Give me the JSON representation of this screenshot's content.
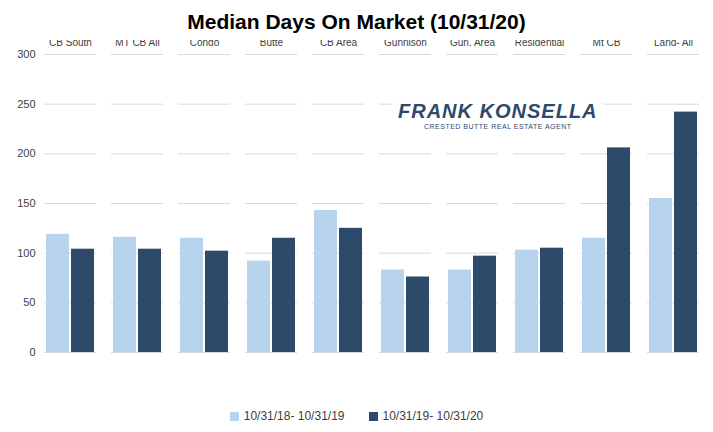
{
  "chart_data": {
    "type": "bar",
    "title": "Median Days On Market (10/31/20)",
    "categories": [
      "CB South",
      "MT CB All",
      "MT CB Condo",
      "Crested Butte",
      "CB Area",
      "Gunnison",
      "Gun. Area",
      "All Residential",
      "Land- CB South thru Mt CB",
      "Land- All"
    ],
    "series": [
      {
        "name": "10/31/18- 10/31/19",
        "color": "#b8d3ee",
        "values": [
          119,
          116,
          115,
          92,
          143,
          83,
          83,
          103,
          115,
          155
        ]
      },
      {
        "name": "10/31/19- 10/31/20",
        "color": "#2e4a6b",
        "values": [
          104,
          104,
          102,
          115,
          125,
          76,
          97,
          105,
          206,
          242
        ]
      }
    ],
    "ylim": [
      0,
      300
    ],
    "yticks": [
      0,
      50,
      100,
      150,
      200,
      250,
      300
    ],
    "grid": true,
    "legend": "bottom",
    "annotations": [
      "FRANK KONSELLA",
      "CRESTED BUTTE REAL ESTATE AGENT"
    ]
  }
}
